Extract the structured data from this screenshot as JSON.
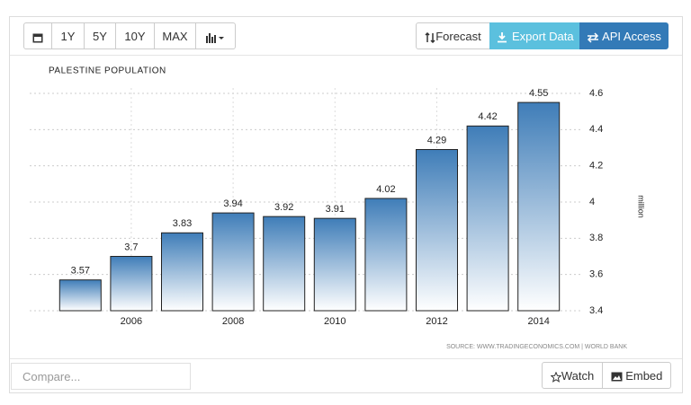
{
  "toolbar": {
    "ranges": [
      "1Y",
      "5Y",
      "10Y",
      "MAX"
    ],
    "actions": [
      "Forecast",
      "Export Data",
      "API Access"
    ]
  },
  "chart_data": {
    "type": "bar",
    "title": "PALESTINE POPULATION",
    "y_label": "million",
    "categories": [
      null,
      "2006",
      null,
      "2008",
      null,
      "2010",
      null,
      "2012",
      null,
      "2014"
    ],
    "values": [
      3.57,
      3.7,
      3.83,
      3.94,
      3.92,
      3.91,
      4.02,
      4.29,
      4.42,
      4.55
    ],
    "color": "#3f7db8",
    "ylim": [
      3.4,
      4.6
    ],
    "yticks": [
      3.4,
      3.6,
      3.8,
      4,
      4.2,
      4.4,
      4.6
    ],
    "grid": true,
    "source": "SOURCE: WWW.TRADINGECONOMICS.COM | WORLD BANK"
  },
  "footer": {
    "compare_placeholder": "Compare...",
    "buttons": [
      "Watch",
      "Embed"
    ]
  }
}
